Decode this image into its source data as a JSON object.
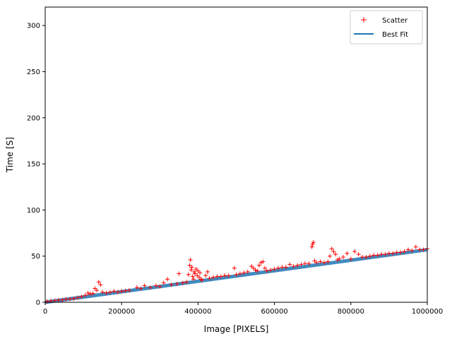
{
  "chart_data": {
    "type": "scatter",
    "title": "",
    "xlabel": "Image [PIXELS]",
    "ylabel": "Time [S]",
    "xlim": [
      0,
      1000000
    ],
    "ylim": [
      0,
      320
    ],
    "xticks": [
      0,
      200000,
      400000,
      600000,
      800000,
      1000000
    ],
    "yticks": [
      0,
      50,
      100,
      150,
      200,
      250,
      300
    ],
    "grid": false,
    "legend_position": "top-right",
    "series": [
      {
        "name": "Scatter",
        "kind": "scatter",
        "marker": "+",
        "color": "#ff0000",
        "points": [
          [
            5000,
            1.0
          ],
          [
            15000,
            1.5
          ],
          [
            25000,
            1.8
          ],
          [
            35000,
            2.4
          ],
          [
            45000,
            2.6
          ],
          [
            55000,
            3.3
          ],
          [
            65000,
            3.6
          ],
          [
            75000,
            4.0
          ],
          [
            85000,
            5.0
          ],
          [
            95000,
            6.0
          ],
          [
            105000,
            7.5
          ],
          [
            112000,
            10
          ],
          [
            118000,
            9
          ],
          [
            125000,
            9.5
          ],
          [
            130000,
            15
          ],
          [
            135000,
            13
          ],
          [
            140000,
            22
          ],
          [
            145000,
            19
          ],
          [
            150000,
            11
          ],
          [
            160000,
            10
          ],
          [
            170000,
            11
          ],
          [
            180000,
            12
          ],
          [
            190000,
            11
          ],
          [
            200000,
            12
          ],
          [
            210000,
            12.5
          ],
          [
            220000,
            13
          ],
          [
            240000,
            16
          ],
          [
            250000,
            15
          ],
          [
            260000,
            18
          ],
          [
            275000,
            16
          ],
          [
            290000,
            18
          ],
          [
            300000,
            17
          ],
          [
            310000,
            21
          ],
          [
            320000,
            25
          ],
          [
            330000,
            19
          ],
          [
            345000,
            20
          ],
          [
            350000,
            31
          ],
          [
            360000,
            21
          ],
          [
            370000,
            22
          ],
          [
            375000,
            30
          ],
          [
            378000,
            40
          ],
          [
            380000,
            46
          ],
          [
            382000,
            35
          ],
          [
            384000,
            38
          ],
          [
            386000,
            28
          ],
          [
            388000,
            25
          ],
          [
            390000,
            33
          ],
          [
            392000,
            31
          ],
          [
            395000,
            36
          ],
          [
            398000,
            29
          ],
          [
            400000,
            34
          ],
          [
            403000,
            27
          ],
          [
            405000,
            32
          ],
          [
            408000,
            25
          ],
          [
            410000,
            24
          ],
          [
            420000,
            29
          ],
          [
            425000,
            33
          ],
          [
            430000,
            26
          ],
          [
            440000,
            27
          ],
          [
            450000,
            28
          ],
          [
            460000,
            28
          ],
          [
            470000,
            29
          ],
          [
            480000,
            29
          ],
          [
            495000,
            37
          ],
          [
            500000,
            30
          ],
          [
            510000,
            31
          ],
          [
            520000,
            32
          ],
          [
            530000,
            33
          ],
          [
            540000,
            39
          ],
          [
            545000,
            37
          ],
          [
            550000,
            35
          ],
          [
            555000,
            34
          ],
          [
            560000,
            40
          ],
          [
            565000,
            43
          ],
          [
            570000,
            44
          ],
          [
            575000,
            37
          ],
          [
            580000,
            34
          ],
          [
            590000,
            35
          ],
          [
            600000,
            36
          ],
          [
            610000,
            37
          ],
          [
            620000,
            38
          ],
          [
            630000,
            38
          ],
          [
            640000,
            41
          ],
          [
            650000,
            39
          ],
          [
            660000,
            40
          ],
          [
            670000,
            41
          ],
          [
            680000,
            42
          ],
          [
            690000,
            42
          ],
          [
            698000,
            60
          ],
          [
            700000,
            63
          ],
          [
            702000,
            65
          ],
          [
            705000,
            45
          ],
          [
            710000,
            43
          ],
          [
            720000,
            44
          ],
          [
            730000,
            43
          ],
          [
            740000,
            44
          ],
          [
            745000,
            50
          ],
          [
            750000,
            58
          ],
          [
            755000,
            55
          ],
          [
            760000,
            52
          ],
          [
            765000,
            46
          ],
          [
            770000,
            47
          ],
          [
            780000,
            49
          ],
          [
            790000,
            53
          ],
          [
            800000,
            47
          ],
          [
            810000,
            55
          ],
          [
            820000,
            52
          ],
          [
            830000,
            49
          ],
          [
            840000,
            49
          ],
          [
            850000,
            50
          ],
          [
            860000,
            51
          ],
          [
            870000,
            51
          ],
          [
            880000,
            52
          ],
          [
            890000,
            52
          ],
          [
            900000,
            53
          ],
          [
            910000,
            53
          ],
          [
            920000,
            54
          ],
          [
            930000,
            54
          ],
          [
            940000,
            55
          ],
          [
            950000,
            57
          ],
          [
            960000,
            56
          ],
          [
            970000,
            60
          ],
          [
            980000,
            57
          ],
          [
            990000,
            57
          ],
          [
            1000000,
            58
          ]
        ]
      },
      {
        "name": "Best Fit",
        "kind": "line",
        "color": "#1f77b4",
        "points": [
          [
            0,
            0
          ],
          [
            1000000,
            57
          ]
        ]
      }
    ]
  }
}
